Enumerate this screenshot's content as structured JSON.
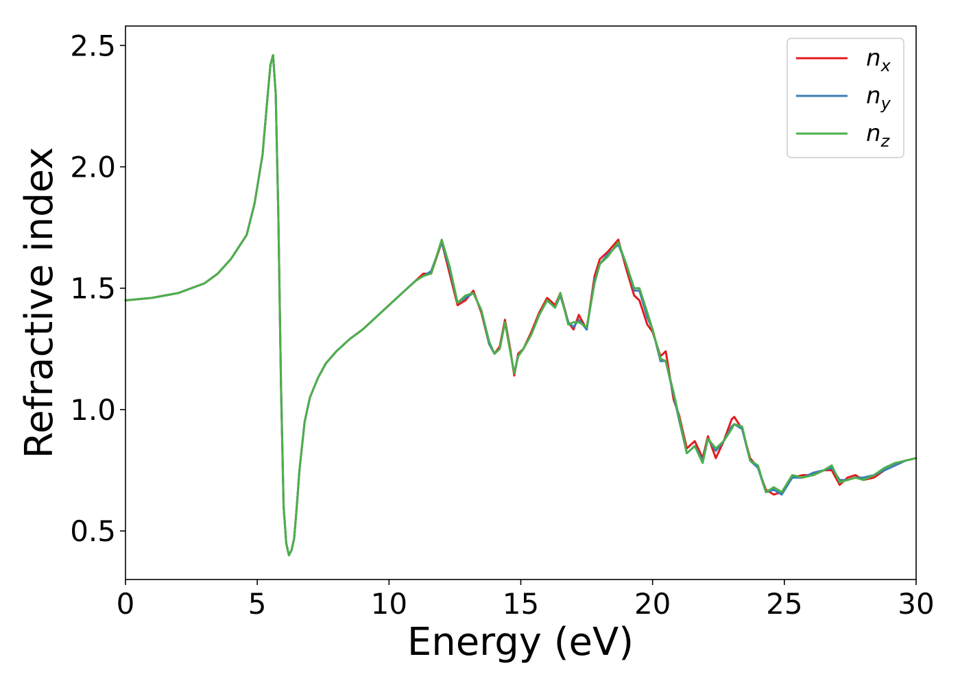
{
  "chart_data": {
    "type": "line",
    "xlabel": "Energy (eV)",
    "ylabel": "Refractive index",
    "xlim": [
      0,
      30
    ],
    "ylim": [
      0.3,
      2.58
    ],
    "xticks": [
      0,
      5,
      10,
      15,
      20,
      25,
      30
    ],
    "yticks": [
      0.5,
      1.0,
      1.5,
      2.0,
      2.5
    ],
    "xtick_labels": [
      "0",
      "5",
      "10",
      "15",
      "20",
      "25",
      "30"
    ],
    "ytick_labels": [
      "0.5",
      "1.0",
      "1.5",
      "2.0",
      "2.5"
    ],
    "grid": false,
    "legend_position": "top-right",
    "series": [
      {
        "name": "n_x",
        "label_base": "n",
        "label_sub": "x",
        "color": "#e41a1c",
        "x": [
          0,
          1,
          2,
          3,
          3.5,
          4,
          4.3,
          4.6,
          4.9,
          5.2,
          5.4,
          5.5,
          5.6,
          5.7,
          5.8,
          5.9,
          6.0,
          6.1,
          6.2,
          6.3,
          6.4,
          6.5,
          6.6,
          6.8,
          7.0,
          7.3,
          7.6,
          8,
          8.5,
          9,
          9.5,
          10,
          10.5,
          11,
          11.3,
          11.6,
          12.0,
          12.3,
          12.6,
          12.9,
          13.2,
          13.5,
          13.8,
          14.0,
          14.2,
          14.4,
          14.6,
          14.75,
          14.9,
          15.1,
          15.4,
          15.7,
          16.0,
          16.3,
          16.5,
          16.8,
          17.0,
          17.2,
          17.5,
          17.8,
          18.0,
          18.3,
          18.7,
          19.0,
          19.3,
          19.5,
          19.8,
          20.0,
          20.3,
          20.5,
          20.8,
          21.0,
          21.3,
          21.6,
          21.9,
          22.1,
          22.4,
          22.7,
          23.0,
          23.1,
          23.4,
          23.7,
          24.0,
          24.3,
          24.6,
          24.9,
          25.3,
          25.7,
          26.1,
          26.5,
          26.8,
          27.1,
          27.4,
          27.7,
          28.0,
          28.4,
          28.8,
          29.2,
          29.6,
          30
        ],
        "y": [
          1.45,
          1.46,
          1.48,
          1.52,
          1.56,
          1.62,
          1.67,
          1.72,
          1.85,
          2.05,
          2.3,
          2.42,
          2.46,
          2.3,
          1.8,
          1.1,
          0.6,
          0.45,
          0.4,
          0.42,
          0.47,
          0.6,
          0.75,
          0.95,
          1.05,
          1.13,
          1.19,
          1.24,
          1.29,
          1.33,
          1.38,
          1.43,
          1.48,
          1.53,
          1.56,
          1.56,
          1.69,
          1.56,
          1.43,
          1.45,
          1.49,
          1.4,
          1.27,
          1.23,
          1.26,
          1.37,
          1.25,
          1.14,
          1.23,
          1.25,
          1.32,
          1.4,
          1.46,
          1.43,
          1.48,
          1.36,
          1.33,
          1.39,
          1.33,
          1.55,
          1.62,
          1.65,
          1.7,
          1.58,
          1.47,
          1.45,
          1.35,
          1.32,
          1.22,
          1.24,
          1.04,
          0.98,
          0.84,
          0.87,
          0.8,
          0.89,
          0.8,
          0.87,
          0.96,
          0.97,
          0.92,
          0.8,
          0.76,
          0.67,
          0.65,
          0.66,
          0.72,
          0.73,
          0.73,
          0.75,
          0.75,
          0.69,
          0.72,
          0.73,
          0.71,
          0.72,
          0.75,
          0.77,
          0.79,
          0.8
        ]
      },
      {
        "name": "n_y",
        "label_base": "n",
        "label_sub": "y",
        "color": "#377eb8",
        "x": [
          0,
          1,
          2,
          3,
          3.5,
          4,
          4.3,
          4.6,
          4.9,
          5.2,
          5.4,
          5.5,
          5.6,
          5.7,
          5.8,
          5.9,
          6.0,
          6.1,
          6.2,
          6.3,
          6.4,
          6.5,
          6.6,
          6.8,
          7.0,
          7.3,
          7.6,
          8,
          8.5,
          9,
          9.5,
          10,
          10.5,
          11,
          11.3,
          11.6,
          12.0,
          12.3,
          12.6,
          12.9,
          13.2,
          13.5,
          13.8,
          14.0,
          14.2,
          14.4,
          14.6,
          14.75,
          14.9,
          15.1,
          15.4,
          15.7,
          16.0,
          16.3,
          16.5,
          16.8,
          17.0,
          17.2,
          17.5,
          17.8,
          18.0,
          18.3,
          18.7,
          19.0,
          19.3,
          19.5,
          19.8,
          20.0,
          20.3,
          20.5,
          20.8,
          21.0,
          21.3,
          21.6,
          21.9,
          22.1,
          22.4,
          22.7,
          23.0,
          23.1,
          23.4,
          23.7,
          24.0,
          24.3,
          24.6,
          24.9,
          25.3,
          25.7,
          26.1,
          26.5,
          26.8,
          27.1,
          27.4,
          27.7,
          28.0,
          28.4,
          28.8,
          29.2,
          29.6,
          30
        ],
        "y": [
          1.45,
          1.46,
          1.48,
          1.52,
          1.56,
          1.62,
          1.67,
          1.72,
          1.85,
          2.05,
          2.3,
          2.42,
          2.46,
          2.3,
          1.8,
          1.1,
          0.6,
          0.45,
          0.4,
          0.42,
          0.47,
          0.6,
          0.75,
          0.95,
          1.05,
          1.13,
          1.19,
          1.24,
          1.29,
          1.33,
          1.38,
          1.43,
          1.48,
          1.53,
          1.55,
          1.57,
          1.69,
          1.58,
          1.44,
          1.46,
          1.48,
          1.41,
          1.27,
          1.23,
          1.25,
          1.36,
          1.24,
          1.15,
          1.22,
          1.25,
          1.31,
          1.39,
          1.45,
          1.42,
          1.47,
          1.36,
          1.34,
          1.37,
          1.33,
          1.53,
          1.6,
          1.64,
          1.68,
          1.6,
          1.49,
          1.49,
          1.38,
          1.33,
          1.2,
          1.2,
          1.06,
          0.96,
          0.82,
          0.85,
          0.79,
          0.88,
          0.83,
          0.87,
          0.93,
          0.94,
          0.92,
          0.79,
          0.76,
          0.66,
          0.67,
          0.65,
          0.72,
          0.72,
          0.74,
          0.75,
          0.76,
          0.71,
          0.71,
          0.72,
          0.72,
          0.73,
          0.75,
          0.77,
          0.79,
          0.8
        ]
      },
      {
        "name": "n_z",
        "label_base": "n",
        "label_sub": "z",
        "color": "#4daf4a",
        "x": [
          0,
          1,
          2,
          3,
          3.5,
          4,
          4.3,
          4.6,
          4.9,
          5.2,
          5.4,
          5.5,
          5.6,
          5.7,
          5.8,
          5.9,
          6.0,
          6.1,
          6.2,
          6.3,
          6.4,
          6.5,
          6.6,
          6.8,
          7.0,
          7.3,
          7.6,
          8,
          8.5,
          9,
          9.5,
          10,
          10.5,
          11,
          11.3,
          11.6,
          12.0,
          12.3,
          12.6,
          12.9,
          13.2,
          13.5,
          13.8,
          14.0,
          14.2,
          14.4,
          14.6,
          14.75,
          14.9,
          15.1,
          15.4,
          15.7,
          16.0,
          16.3,
          16.5,
          16.8,
          17.0,
          17.2,
          17.5,
          17.8,
          18.0,
          18.3,
          18.7,
          19.0,
          19.3,
          19.5,
          19.8,
          20.0,
          20.3,
          20.5,
          20.8,
          21.0,
          21.3,
          21.6,
          21.9,
          22.1,
          22.4,
          22.7,
          23.0,
          23.1,
          23.4,
          23.7,
          24.0,
          24.3,
          24.6,
          24.9,
          25.3,
          25.7,
          26.1,
          26.5,
          26.8,
          27.1,
          27.4,
          27.7,
          28.0,
          28.4,
          28.8,
          29.2,
          29.6,
          30
        ],
        "y": [
          1.45,
          1.46,
          1.48,
          1.52,
          1.56,
          1.62,
          1.67,
          1.72,
          1.85,
          2.05,
          2.3,
          2.42,
          2.46,
          2.3,
          1.8,
          1.1,
          0.6,
          0.45,
          0.4,
          0.42,
          0.47,
          0.6,
          0.75,
          0.95,
          1.05,
          1.13,
          1.19,
          1.24,
          1.29,
          1.33,
          1.38,
          1.43,
          1.48,
          1.53,
          1.55,
          1.56,
          1.7,
          1.59,
          1.44,
          1.47,
          1.48,
          1.41,
          1.28,
          1.23,
          1.25,
          1.36,
          1.24,
          1.15,
          1.22,
          1.25,
          1.31,
          1.39,
          1.45,
          1.42,
          1.48,
          1.35,
          1.36,
          1.36,
          1.34,
          1.52,
          1.6,
          1.63,
          1.69,
          1.6,
          1.5,
          1.5,
          1.4,
          1.33,
          1.21,
          1.2,
          1.07,
          0.97,
          0.82,
          0.85,
          0.78,
          0.88,
          0.84,
          0.87,
          0.92,
          0.94,
          0.93,
          0.79,
          0.77,
          0.66,
          0.68,
          0.66,
          0.73,
          0.72,
          0.73,
          0.75,
          0.77,
          0.7,
          0.71,
          0.72,
          0.71,
          0.73,
          0.76,
          0.78,
          0.79,
          0.8
        ]
      }
    ]
  }
}
